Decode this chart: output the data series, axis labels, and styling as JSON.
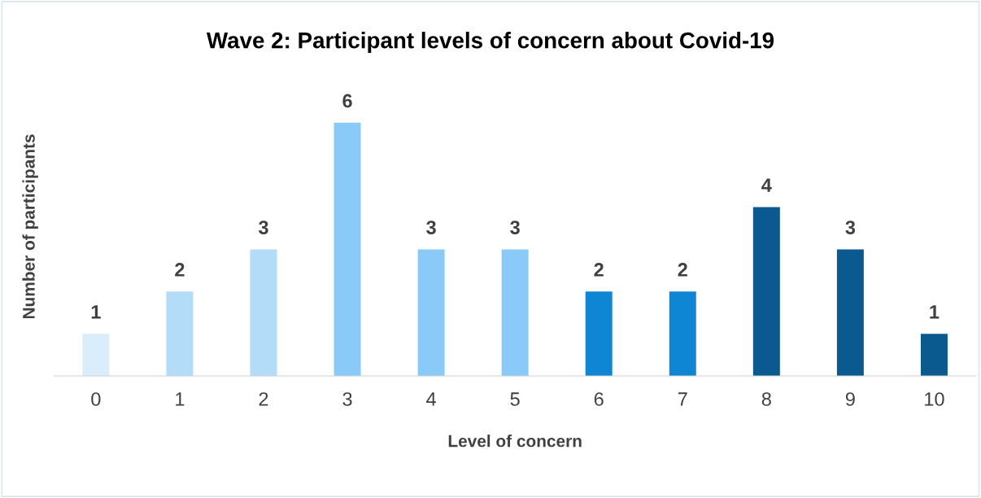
{
  "chart_data": {
    "type": "bar",
    "title": "Wave 2: Participant levels of concern about Covid-19",
    "xlabel": "Level of concern",
    "ylabel": "Number of participants",
    "categories": [
      "0",
      "1",
      "2",
      "3",
      "4",
      "5",
      "6",
      "7",
      "8",
      "9",
      "10"
    ],
    "values": [
      1,
      2,
      3,
      6,
      3,
      3,
      2,
      2,
      4,
      3,
      1
    ],
    "colors": [
      "#daedfb",
      "#b3dcf9",
      "#b3dcf9",
      "#89caf8",
      "#89caf8",
      "#89caf8",
      "#0e86d4",
      "#0e86d4",
      "#0a5a8f",
      "#0a5a8f",
      "#0a5a8f"
    ],
    "data_labels": true,
    "grid": false,
    "legend": false
  }
}
